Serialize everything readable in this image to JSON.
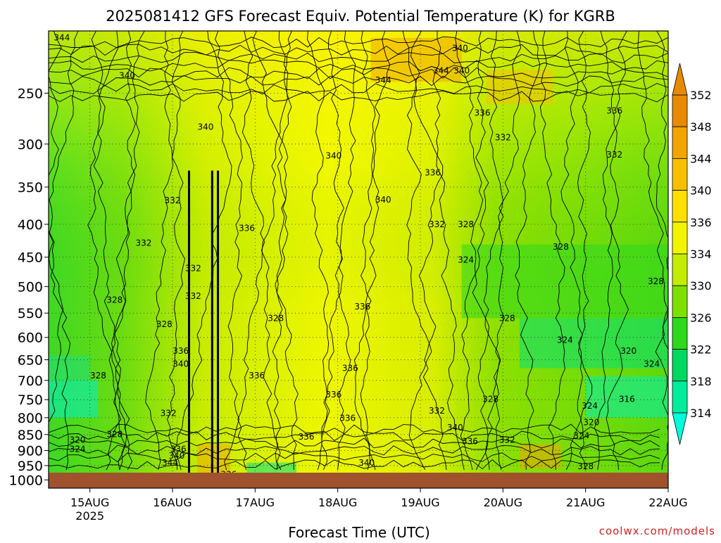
{
  "title": "2025081412 GFS Forecast Equiv. Potential Temperature (K) for KGRB",
  "credit": "coolwx.com/models",
  "chart_data": {
    "type": "heatmap",
    "title": "2025081412 GFS Forecast Equiv. Potential Temperature (K) for KGRB",
    "xlabel": "Forecast Time (UTC)",
    "ylabel": "",
    "x_ticks": [
      "15AUG",
      "16AUG",
      "17AUG",
      "18AUG",
      "19AUG",
      "20AUG",
      "21AUG",
      "22AUG"
    ],
    "x_tick_year": "2025",
    "y_ticks": [
      250,
      300,
      350,
      400,
      450,
      500,
      550,
      600,
      650,
      700,
      750,
      800,
      850,
      900,
      950,
      1000
    ],
    "y_scale": "log-pressure",
    "ylim": [
      200,
      1030
    ],
    "xlim_days": [
      14.5,
      22.0
    ],
    "grid": true,
    "colorbar": {
      "levels": [
        314,
        318,
        322,
        326,
        330,
        334,
        336,
        340,
        344,
        348,
        352
      ],
      "colors": [
        "#00ffdd",
        "#00ee9c",
        "#00d860",
        "#2ed81a",
        "#7ee000",
        "#c4ec00",
        "#f4f400",
        "#ffe000",
        "#f8c000",
        "#f2a400",
        "#e88a00"
      ],
      "extend": "both"
    },
    "ground_color": "#a0522d",
    "contour_labels": [
      {
        "t": 14.66,
        "p": 207,
        "v": "344"
      },
      {
        "t": 15.45,
        "p": 237,
        "v": "340"
      },
      {
        "t": 19.48,
        "p": 215,
        "v": "340"
      },
      {
        "t": 18.55,
        "p": 241,
        "v": "344"
      },
      {
        "t": 19.25,
        "p": 233,
        "v": "344"
      },
      {
        "t": 19.5,
        "p": 233,
        "v": "340"
      },
      {
        "t": 16.4,
        "p": 285,
        "v": "340"
      },
      {
        "t": 17.95,
        "p": 316,
        "v": "340"
      },
      {
        "t": 19.15,
        "p": 336,
        "v": "336"
      },
      {
        "t": 19.75,
        "p": 271,
        "v": "336"
      },
      {
        "t": 20.0,
        "p": 296,
        "v": "332"
      },
      {
        "t": 21.35,
        "p": 269,
        "v": "336"
      },
      {
        "t": 21.35,
        "p": 315,
        "v": "332"
      },
      {
        "t": 16.0,
        "p": 371,
        "v": "332"
      },
      {
        "t": 18.55,
        "p": 370,
        "v": "340"
      },
      {
        "t": 16.9,
        "p": 410,
        "v": "336"
      },
      {
        "t": 19.2,
        "p": 404,
        "v": "332"
      },
      {
        "t": 19.55,
        "p": 404,
        "v": "328"
      },
      {
        "t": 15.65,
        "p": 432,
        "v": "332"
      },
      {
        "t": 20.7,
        "p": 438,
        "v": "328"
      },
      {
        "t": 19.55,
        "p": 459,
        "v": "324"
      },
      {
        "t": 16.25,
        "p": 473,
        "v": "332"
      },
      {
        "t": 15.3,
        "p": 530,
        "v": "328"
      },
      {
        "t": 16.25,
        "p": 523,
        "v": "332"
      },
      {
        "t": 21.85,
        "p": 496,
        "v": "328"
      },
      {
        "t": 17.25,
        "p": 566,
        "v": "328"
      },
      {
        "t": 18.3,
        "p": 543,
        "v": "336"
      },
      {
        "t": 15.9,
        "p": 578,
        "v": "328"
      },
      {
        "t": 20.05,
        "p": 566,
        "v": "328"
      },
      {
        "t": 20.75,
        "p": 612,
        "v": "324"
      },
      {
        "t": 21.52,
        "p": 636,
        "v": "320"
      },
      {
        "t": 21.8,
        "p": 667,
        "v": "324"
      },
      {
        "t": 16.1,
        "p": 636,
        "v": "336"
      },
      {
        "t": 16.1,
        "p": 667,
        "v": "340"
      },
      {
        "t": 17.02,
        "p": 695,
        "v": "336"
      },
      {
        "t": 18.15,
        "p": 677,
        "v": "336"
      },
      {
        "t": 15.1,
        "p": 695,
        "v": "328"
      },
      {
        "t": 17.95,
        "p": 744,
        "v": "336"
      },
      {
        "t": 19.85,
        "p": 756,
        "v": "328"
      },
      {
        "t": 21.5,
        "p": 756,
        "v": "316"
      },
      {
        "t": 21.05,
        "p": 775,
        "v": "324"
      },
      {
        "t": 15.95,
        "p": 795,
        "v": "332"
      },
      {
        "t": 18.12,
        "p": 810,
        "v": "336"
      },
      {
        "t": 19.2,
        "p": 788,
        "v": "332"
      },
      {
        "t": 21.07,
        "p": 822,
        "v": "320"
      },
      {
        "t": 19.42,
        "p": 838,
        "v": "340"
      },
      {
        "t": 15.3,
        "p": 858,
        "v": "328"
      },
      {
        "t": 17.62,
        "p": 866,
        "v": "336"
      },
      {
        "t": 19.6,
        "p": 880,
        "v": "336"
      },
      {
        "t": 20.05,
        "p": 875,
        "v": "332"
      },
      {
        "t": 20.95,
        "p": 862,
        "v": "324"
      },
      {
        "t": 14.85,
        "p": 875,
        "v": "320"
      },
      {
        "t": 14.85,
        "p": 904,
        "v": "324"
      },
      {
        "t": 16.07,
        "p": 904,
        "v": "336"
      },
      {
        "t": 16.05,
        "p": 926,
        "v": "340"
      },
      {
        "t": 15.97,
        "p": 950,
        "v": "344"
      },
      {
        "t": 18.35,
        "p": 950,
        "v": "340"
      },
      {
        "t": 21.0,
        "p": 962,
        "v": "328"
      },
      {
        "t": 16.68,
        "p": 990,
        "v": "336"
      }
    ]
  }
}
